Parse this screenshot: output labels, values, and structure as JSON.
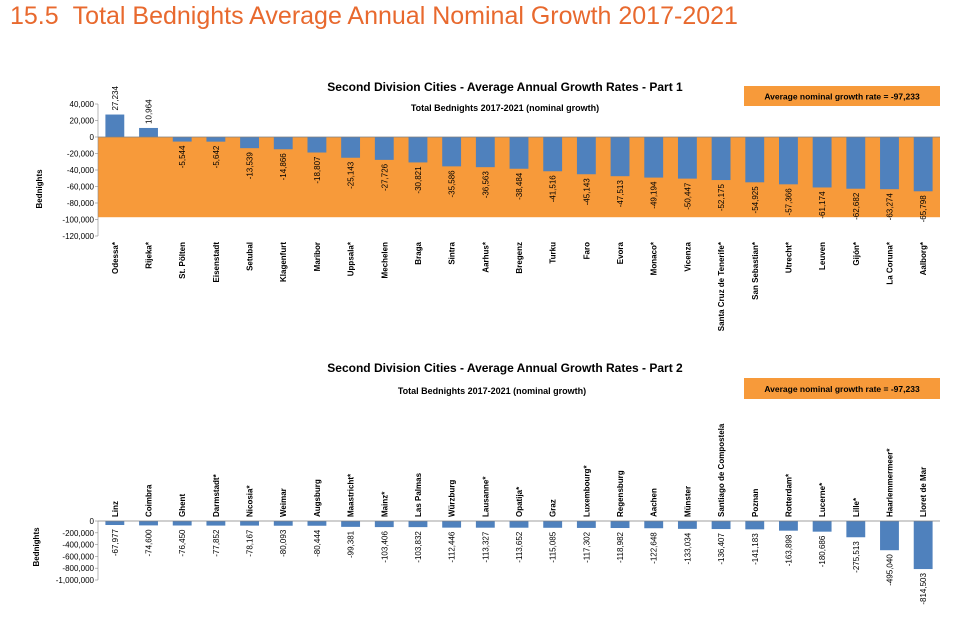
{
  "section": {
    "number": "15.5",
    "title": "Total Bednights Average Annual Nominal Growth 2017-2021"
  },
  "colors": {
    "title": "#e8692e",
    "bar": "#4f81bd",
    "avg_fill": "#f79a3a"
  },
  "chart_data": [
    {
      "type": "bar",
      "title": "Second Division Cities - Average Annual Growth Rates - Part 1",
      "subtitle": "Total Bednights 2017-2021 (nominal growth)",
      "ylabel": "Bednights",
      "ylim": [
        -120000,
        40000
      ],
      "yticks": [
        40000,
        20000,
        0,
        -20000,
        -40000,
        -60000,
        -80000,
        -100000,
        -120000
      ],
      "ytick_labels": [
        "40,000",
        "20,000",
        "0",
        "-20,000",
        "-40,000",
        "-60,000",
        "-80,000",
        "-100,000",
        "-120,000"
      ],
      "average": -97233,
      "average_label": "Average nominal growth rate =  -97,233",
      "categories": [
        "Odessa*",
        "Rijeka*",
        "St. Pölten",
        "Eisenstadt",
        "Setubal",
        "Klagenfurt",
        "Maribor",
        "Uppsala*",
        "Mechelen",
        "Braga",
        "Sintra",
        "Aarhus*",
        "Bregenz",
        "Turku",
        "Faro",
        "Evora",
        "Monaco*",
        "Vicenza",
        "Santa Cruz de Tenerife*",
        "San Sebastian*",
        "Utrecht*",
        "Leuven",
        "Gijón*",
        "La Coruna*",
        "Aalborg*"
      ],
      "values": [
        27234,
        10964,
        -5544,
        -5642,
        -13539,
        -14866,
        -18807,
        -25143,
        -27726,
        -30821,
        -35586,
        -36563,
        -38484,
        -41516,
        -45143,
        -47513,
        -49194,
        -50447,
        -52175,
        -54925,
        -57366,
        -61174,
        -62682,
        -63274,
        -65798
      ],
      "value_labels": [
        "27,234",
        "10,964",
        "-5,544",
        "-5,642",
        "-13,539",
        "-14,866",
        "-18,807",
        "-25,143",
        "-27,726",
        "-30,821",
        "-35,586",
        "-36,563",
        "-38,484",
        "-41,516",
        "-45,143",
        "-47,513",
        "-49,194",
        "-50,447",
        "-52,175",
        "-54,925",
        "-57,366",
        "-61,174",
        "-62,682",
        "-63,274",
        "-65,798"
      ],
      "category_position": "below",
      "legend": "top-right"
    },
    {
      "type": "bar",
      "title": "Second Division Cities - Average Annual Growth Rates - Part 2",
      "subtitle": "Total Bednights 2017-2021 (nominal growth)",
      "ylabel": "Bednights",
      "ylim": [
        -1000000,
        0
      ],
      "yticks": [
        0,
        -200000,
        -400000,
        -600000,
        -800000,
        -1000000
      ],
      "ytick_labels": [
        "0",
        "-200,000",
        "-400,000",
        "-600,000",
        "-800,000",
        "-1,000,000"
      ],
      "average": -97233,
      "average_label": "Average nominal growth rate =  -97,233",
      "categories": [
        "Linz",
        "Coimbra",
        "Ghent",
        "Darmstadt*",
        "Nicosia*",
        "Weimar",
        "Augsburg",
        "Maastricht*",
        "Mainz*",
        "Las Palmas",
        "Würzburg",
        "Lausanne*",
        "Opatija*",
        "Graz",
        "Luxembourg*",
        "Regensburg",
        "Aachen",
        "Münster",
        "Santiago de Compostela",
        "Poznan",
        "Rotterdam*",
        "Lucerne*",
        "Lille*",
        "Haarlemmermeer*",
        "Lloret de Mar"
      ],
      "values": [
        -67977,
        -74600,
        -76450,
        -77852,
        -78167,
        -80093,
        -80444,
        -99381,
        -103406,
        -103832,
        -112446,
        -113327,
        -113652,
        -115085,
        -117302,
        -118982,
        -122648,
        -133034,
        -136407,
        -141183,
        -163898,
        -180686,
        -275513,
        -495040,
        -814503
      ],
      "value_labels": [
        "-67,977",
        "-74,600",
        "-76,450",
        "-77,852",
        "-78,167",
        "-80,093",
        "-80,444",
        "-99,381",
        "-103,406",
        "-103,832",
        "-112,446",
        "-113,327",
        "-113,652",
        "-115,085",
        "-117,302",
        "-118,982",
        "-122,648",
        "-133,034",
        "-136,407",
        "-141,183",
        "-163,898",
        "-180,686",
        "-275,513",
        "-495,040",
        "-814,503"
      ],
      "category_position": "above",
      "legend": "top-right"
    }
  ]
}
